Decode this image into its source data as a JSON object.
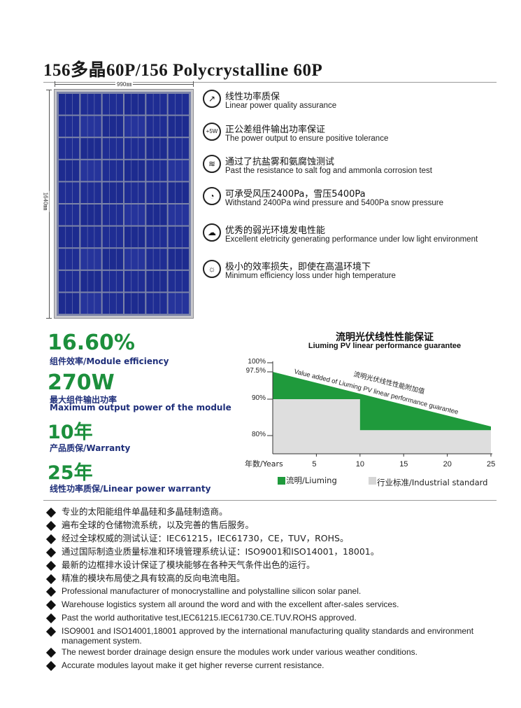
{
  "title": "156多晶60P/156 Polycrystalline 60P",
  "panel": {
    "width_label": "990㎜",
    "height_label": "1640㎜"
  },
  "features": [
    {
      "icon": "signal-arrow-icon",
      "glyph": "↗",
      "cn": "线性功率质保",
      "en": "Linear power quality assurance"
    },
    {
      "icon": "bulb-icon",
      "glyph": "+5W",
      "cn": "正公差组件输出功率保证",
      "en": "The power output to ensure positive tolerance"
    },
    {
      "icon": "salt-fog-icon",
      "glyph": "≋",
      "cn": "通过了抗盐雾和氨腐蚀测试",
      "en": "Past the resistance to salt fog and ammonla corrosion test"
    },
    {
      "icon": "gauge-icon",
      "glyph": "◔",
      "cn": "可承受风压2400Pa，雪压5400Pa",
      "en": "Withstand 2400Pa wind pressure and 5400Pa snow pressure"
    },
    {
      "icon": "weak-light-icon",
      "glyph": "☁",
      "cn": "优秀的弱光环境发电性能",
      "en": "Excellent eletricity generating performance under low light environment"
    },
    {
      "icon": "temperature-icon",
      "glyph": "☼",
      "cn": "极小的效率损失，即使在高温环境下",
      "en": "Minimum efficiency loss under high temperature"
    }
  ],
  "stats": [
    {
      "value": "16.60%",
      "label": "组件效率/Module efficiency"
    },
    {
      "value": "270W",
      "label": "最大组件输出功率",
      "label2": "Maximum output power of the module"
    },
    {
      "value": "10年",
      "label": "产品质保/Warranty"
    },
    {
      "value": "25年",
      "label": "线性功率质保/Linear power warranty"
    }
  ],
  "chart_data": {
    "type": "area",
    "title": "流明光伏线性性能保证",
    "subtitle": "Liuming PV linear performance guarantee",
    "xlabel": "年数/Years",
    "ylabel": "",
    "x_ticks": [
      5,
      10,
      15,
      20,
      25
    ],
    "y_ticks": [
      {
        "value": 100,
        "label": "100%"
      },
      {
        "value": 97.5,
        "label": "97.5%"
      },
      {
        "value": 90,
        "label": "90%"
      },
      {
        "value": 80,
        "label": "80%"
      }
    ],
    "xlim": [
      0,
      25
    ],
    "ylim": [
      75,
      100
    ],
    "series": [
      {
        "name": "流明/Liuming",
        "color": "#1f9a3c",
        "x": [
          0,
          25
        ],
        "y": [
          97.5,
          82.5
        ]
      },
      {
        "name": "行业标准/Industrial standard",
        "color": "#dedede",
        "x": [
          0,
          10,
          10,
          25
        ],
        "y": [
          90,
          90,
          81.5,
          81.5
        ]
      }
    ],
    "annotations": [
      {
        "text": "流明光伏线性性能附加值"
      },
      {
        "text": "Value added of Liuming PV linear performance guarantee"
      }
    ]
  },
  "bullets": [
    {
      "text": "专业的太阳能组件单晶硅和多晶硅制造商。",
      "cn": true
    },
    {
      "text": "遍布全球的仓储物流系统，以及完善的售后服务。",
      "cn": true
    },
    {
      "text": "经过全球权威的测试认证：IEC61215，IEC61730，CE，TUV，ROHS。",
      "cn": true
    },
    {
      "text": "通过国际制造业质量标准和环境管理系统认证：ISO9001和ISO14001，18001。",
      "cn": true
    },
    {
      "text": "最新的边框排水设计保证了模块能够在各种天气条件出色的运行。",
      "cn": true
    },
    {
      "text": "精准的模块布局使之具有较高的反向电流电阻。",
      "cn": true
    },
    {
      "text": "Professional manufacturer of monocrystalline and polystalline silicon solar panel.",
      "cn": false
    },
    {
      "text": "Warehouse logistics system all around the word and with the excellent after-sales services.",
      "cn": false
    },
    {
      "text": "Past the world authoritative test,IEC61215.IEC61730.CE.TUV.ROHS approved.",
      "cn": false
    },
    {
      "text": "ISO9001 and ISO14001,18001 approved by the international manufacturing quality standards and environment management system.",
      "cn": false
    },
    {
      "text": "The newest border drainage design ensure the modules work under various weather conditions.",
      "cn": false
    },
    {
      "text": "Accurate modules layout make it get higher reverse current resistance.",
      "cn": false
    }
  ]
}
